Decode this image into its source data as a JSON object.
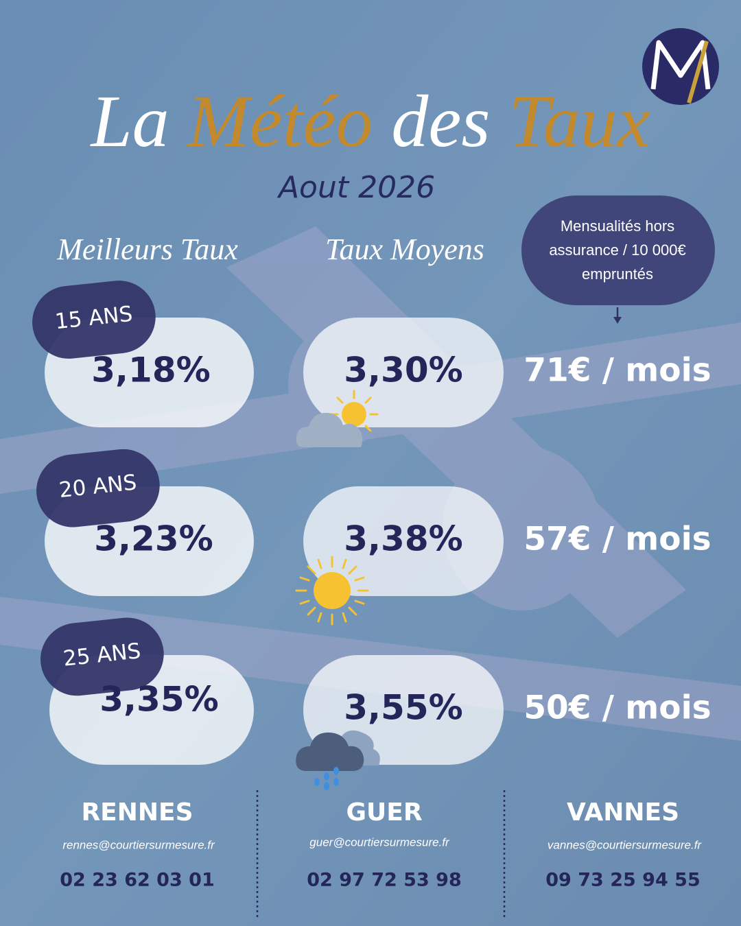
{
  "header": {
    "title": [
      "La",
      "Météo",
      "des",
      "Taux"
    ],
    "subtitle": "Aout 2026"
  },
  "columns": {
    "best": "Meilleurs Taux",
    "average": "Taux Moyens",
    "monthly": [
      "Mensualités hors",
      "assurance / 10 000€",
      "empruntés"
    ]
  },
  "rows": [
    {
      "duration": "15 ANS",
      "best": "3,18%",
      "average": "3,30%",
      "monthly": "71€ / mois"
    },
    {
      "duration": "20 ANS",
      "best": "3,23%",
      "average": "3,38%",
      "monthly": "57€ / mois"
    },
    {
      "duration": "25 ANS",
      "best": "3,35%",
      "average": "3,55%",
      "monthly": "50€ / mois"
    }
  ],
  "offices": [
    {
      "city": "RENNES",
      "email": "rennes@courtiersurmesure.fr",
      "phone": "02 23 62 03 01"
    },
    {
      "city": "GUER",
      "email": "guer@courtiersurmesure.fr",
      "phone": "02 97 72 53 98"
    },
    {
      "city": "VANNES",
      "email": "vannes@courtiersurmesure.fr",
      "phone": "09 73 25 94 55"
    }
  ]
}
